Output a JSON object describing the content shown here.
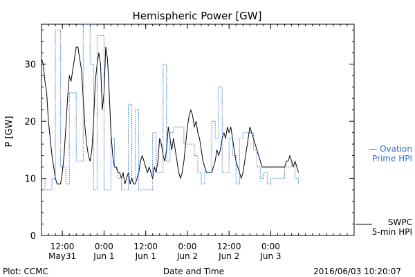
{
  "chart_data": {
    "type": "line",
    "title": "Hemispheric Power [GW]",
    "xlabel": "Date and Time",
    "ylabel": "P [GW]",
    "ylim": [
      0,
      37
    ],
    "yticks": [
      0,
      10,
      20,
      30
    ],
    "xlim": [
      "2016-05-31T06:00",
      "2016-06-04T00:00"
    ],
    "xticks": [
      {
        "t": "2016-05-31T12:00",
        "label_top": "12:00",
        "label_bottom": "May31"
      },
      {
        "t": "2016-06-01T00:00",
        "label_top": "0:00",
        "label_bottom": "Jun 1"
      },
      {
        "t": "2016-06-01T12:00",
        "label_top": "12:00",
        "label_bottom": "Jun 1"
      },
      {
        "t": "2016-06-02T00:00",
        "label_top": "0:00",
        "label_bottom": "Jun 2"
      },
      {
        "t": "2016-06-02T12:00",
        "label_top": "12:00",
        "label_bottom": "Jun 2"
      },
      {
        "t": "2016-06-03T00:00",
        "label_top": "0:00",
        "label_bottom": "Jun 3"
      }
    ],
    "series": [
      {
        "name": "SWPC 5-min HPI",
        "legend_lines": [
          "SWPC",
          "5-min HPI"
        ],
        "color": "#000000",
        "style": "solid",
        "points": [
          [
            "2016-05-31T06:00",
            31
          ],
          [
            "2016-05-31T06:30",
            30
          ],
          [
            "2016-05-31T07:00",
            27
          ],
          [
            "2016-05-31T07:30",
            25
          ],
          [
            "2016-05-31T08:00",
            20
          ],
          [
            "2016-05-31T08:30",
            17
          ],
          [
            "2016-05-31T09:00",
            14
          ],
          [
            "2016-05-31T09:30",
            12
          ],
          [
            "2016-05-31T10:00",
            10
          ],
          [
            "2016-05-31T10:30",
            9
          ],
          [
            "2016-05-31T11:00",
            9
          ],
          [
            "2016-05-31T11:30",
            9
          ],
          [
            "2016-05-31T12:00",
            11
          ],
          [
            "2016-05-31T12:30",
            14
          ],
          [
            "2016-05-31T13:00",
            19
          ],
          [
            "2016-05-31T13:30",
            24
          ],
          [
            "2016-05-31T14:00",
            28
          ],
          [
            "2016-05-31T14:30",
            27
          ],
          [
            "2016-05-31T15:00",
            29
          ],
          [
            "2016-05-31T15:30",
            31
          ],
          [
            "2016-05-31T16:00",
            33
          ],
          [
            "2016-05-31T16:30",
            33
          ],
          [
            "2016-05-31T17:00",
            31
          ],
          [
            "2016-05-31T17:30",
            29
          ],
          [
            "2016-05-31T18:00",
            24
          ],
          [
            "2016-05-31T18:30",
            19
          ],
          [
            "2016-05-31T19:00",
            16
          ],
          [
            "2016-05-31T19:30",
            14
          ],
          [
            "2016-05-31T20:00",
            13
          ],
          [
            "2016-05-31T20:30",
            15
          ],
          [
            "2016-05-31T21:00",
            20
          ],
          [
            "2016-05-31T21:30",
            27
          ],
          [
            "2016-05-31T22:00",
            30
          ],
          [
            "2016-05-31T22:30",
            32
          ],
          [
            "2016-05-31T23:00",
            30
          ],
          [
            "2016-05-31T23:30",
            22
          ],
          [
            "2016-06-01T00:00",
            25
          ],
          [
            "2016-06-01T00:30",
            33
          ],
          [
            "2016-06-01T01:00",
            31
          ],
          [
            "2016-06-01T01:30",
            25
          ],
          [
            "2016-06-01T02:00",
            18
          ],
          [
            "2016-06-01T02:30",
            14
          ],
          [
            "2016-06-01T03:00",
            12
          ],
          [
            "2016-06-01T03:30",
            12
          ],
          [
            "2016-06-01T04:00",
            11
          ],
          [
            "2016-06-01T04:30",
            11
          ],
          [
            "2016-06-01T05:00",
            10
          ],
          [
            "2016-06-01T05:30",
            11
          ],
          [
            "2016-06-01T06:00",
            9
          ],
          [
            "2016-06-01T06:30",
            10
          ],
          [
            "2016-06-01T07:00",
            11
          ],
          [
            "2016-06-01T07:30",
            9
          ],
          [
            "2016-06-01T08:00",
            10
          ],
          [
            "2016-06-01T08:30",
            9
          ],
          [
            "2016-06-01T09:00",
            9
          ],
          [
            "2016-06-01T09:30",
            10
          ],
          [
            "2016-06-01T10:00",
            11
          ],
          [
            "2016-06-01T10:30",
            13
          ],
          [
            "2016-06-01T11:00",
            14
          ],
          [
            "2016-06-01T11:30",
            13
          ],
          [
            "2016-06-01T12:00",
            12
          ],
          [
            "2016-06-01T12:30",
            11
          ],
          [
            "2016-06-01T13:00",
            12
          ],
          [
            "2016-06-01T13:30",
            11
          ],
          [
            "2016-06-01T14:00",
            10
          ],
          [
            "2016-06-01T14:30",
            12
          ],
          [
            "2016-06-01T15:00",
            11
          ],
          [
            "2016-06-01T15:30",
            13
          ],
          [
            "2016-06-01T16:00",
            17
          ],
          [
            "2016-06-01T16:30",
            16
          ],
          [
            "2016-06-01T17:00",
            14
          ],
          [
            "2016-06-01T17:30",
            13
          ],
          [
            "2016-06-01T18:00",
            15
          ],
          [
            "2016-06-01T18:30",
            19
          ],
          [
            "2016-06-01T19:00",
            17
          ],
          [
            "2016-06-01T19:30",
            15
          ],
          [
            "2016-06-01T20:00",
            17
          ],
          [
            "2016-06-01T20:30",
            15
          ],
          [
            "2016-06-01T21:00",
            13
          ],
          [
            "2016-06-01T21:30",
            11
          ],
          [
            "2016-06-01T22:00",
            10
          ],
          [
            "2016-06-01T22:30",
            11
          ],
          [
            "2016-06-01T23:00",
            13
          ],
          [
            "2016-06-01T23:30",
            16
          ],
          [
            "2016-06-02T00:00",
            19
          ],
          [
            "2016-06-02T00:30",
            21
          ],
          [
            "2016-06-02T01:00",
            22
          ],
          [
            "2016-06-02T01:30",
            21
          ],
          [
            "2016-06-02T02:00",
            19
          ],
          [
            "2016-06-02T02:30",
            20
          ],
          [
            "2016-06-02T03:00",
            18
          ],
          [
            "2016-06-02T03:30",
            17
          ],
          [
            "2016-06-02T04:00",
            15
          ],
          [
            "2016-06-02T04:30",
            13
          ],
          [
            "2016-06-02T05:00",
            12
          ],
          [
            "2016-06-02T05:30",
            11
          ],
          [
            "2016-06-02T06:00",
            11
          ],
          [
            "2016-06-02T07:00",
            11
          ],
          [
            "2016-06-02T07:30",
            12
          ],
          [
            "2016-06-02T08:00",
            13
          ],
          [
            "2016-06-02T08:30",
            15
          ],
          [
            "2016-06-02T09:00",
            14
          ],
          [
            "2016-06-02T09:30",
            15
          ],
          [
            "2016-06-02T10:00",
            17
          ],
          [
            "2016-06-02T10:30",
            18
          ],
          [
            "2016-06-02T11:00",
            17
          ],
          [
            "2016-06-02T11:30",
            19
          ],
          [
            "2016-06-02T12:00",
            18
          ],
          [
            "2016-06-02T12:30",
            19
          ],
          [
            "2016-06-02T13:00",
            17
          ],
          [
            "2016-06-02T13:30",
            15
          ],
          [
            "2016-06-02T14:00",
            13
          ],
          [
            "2016-06-02T14:30",
            12
          ],
          [
            "2016-06-02T15:00",
            11
          ],
          [
            "2016-06-02T15:30",
            10
          ],
          [
            "2016-06-02T16:00",
            11
          ],
          [
            "2016-06-02T16:30",
            13
          ],
          [
            "2016-06-02T17:00",
            15
          ],
          [
            "2016-06-02T17:30",
            17
          ],
          [
            "2016-06-02T18:00",
            19
          ],
          [
            "2016-06-02T18:30",
            18
          ],
          [
            "2016-06-02T19:00",
            17
          ],
          [
            "2016-06-02T19:30",
            16
          ],
          [
            "2016-06-02T20:00",
            15
          ],
          [
            "2016-06-02T20:30",
            14
          ],
          [
            "2016-06-02T21:00",
            13
          ],
          [
            "2016-06-02T21:30",
            12
          ],
          [
            "2016-06-02T23:30",
            12
          ],
          [
            "2016-06-03T00:00",
            12
          ],
          [
            "2016-06-03T04:00",
            12
          ],
          [
            "2016-06-03T04:30",
            13
          ],
          [
            "2016-06-03T05:00",
            13
          ],
          [
            "2016-06-03T05:30",
            14
          ],
          [
            "2016-06-03T06:00",
            13
          ],
          [
            "2016-06-03T06:30",
            12
          ],
          [
            "2016-06-03T07:00",
            13
          ],
          [
            "2016-06-03T07:30",
            12
          ],
          [
            "2016-06-03T08:00",
            11
          ]
        ]
      },
      {
        "name": "Ovation Prime HPI",
        "legend_lines": [
          "— Ovation",
          "Prime HPI"
        ],
        "color": "#2f6fd6",
        "style": "dotted",
        "points": [
          [
            "2016-05-31T06:00",
            10
          ],
          [
            "2016-05-31T07:00",
            10
          ],
          [
            "2016-05-31T07:00",
            8
          ],
          [
            "2016-05-31T09:00",
            8
          ],
          [
            "2016-05-31T09:00",
            10
          ],
          [
            "2016-05-31T10:00",
            10
          ],
          [
            "2016-05-31T10:00",
            36
          ],
          [
            "2016-05-31T11:30",
            36
          ],
          [
            "2016-05-31T11:30",
            12
          ],
          [
            "2016-05-31T13:00",
            12
          ],
          [
            "2016-05-31T13:00",
            9
          ],
          [
            "2016-05-31T14:00",
            9
          ],
          [
            "2016-05-31T14:00",
            25
          ],
          [
            "2016-05-31T16:00",
            25
          ],
          [
            "2016-05-31T16:00",
            13
          ],
          [
            "2016-05-31T18:00",
            13
          ],
          [
            "2016-05-31T18:00",
            37
          ],
          [
            "2016-05-31T20:00",
            37
          ],
          [
            "2016-05-31T20:00",
            30
          ],
          [
            "2016-05-31T21:00",
            30
          ],
          [
            "2016-05-31T21:00",
            8
          ],
          [
            "2016-05-31T22:00",
            8
          ],
          [
            "2016-05-31T22:00",
            35
          ],
          [
            "2016-06-01T00:00",
            35
          ],
          [
            "2016-06-01T00:00",
            8
          ],
          [
            "2016-06-01T02:00",
            8
          ],
          [
            "2016-06-01T02:00",
            17
          ],
          [
            "2016-06-01T03:00",
            17
          ],
          [
            "2016-06-01T03:00",
            12
          ],
          [
            "2016-06-01T04:00",
            12
          ],
          [
            "2016-06-01T04:00",
            10
          ],
          [
            "2016-06-01T05:00",
            10
          ],
          [
            "2016-06-01T05:00",
            8
          ],
          [
            "2016-06-01T07:00",
            8
          ],
          [
            "2016-06-01T07:00",
            23
          ],
          [
            "2016-06-01T08:00",
            23
          ],
          [
            "2016-06-01T08:00",
            10
          ],
          [
            "2016-06-01T09:00",
            10
          ],
          [
            "2016-06-01T09:00",
            22
          ],
          [
            "2016-06-01T10:00",
            22
          ],
          [
            "2016-06-01T10:00",
            8
          ],
          [
            "2016-06-01T14:00",
            8
          ],
          [
            "2016-06-01T14:00",
            18
          ],
          [
            "2016-06-01T15:00",
            18
          ],
          [
            "2016-06-01T15:00",
            11
          ],
          [
            "2016-06-01T17:00",
            11
          ],
          [
            "2016-06-01T17:00",
            30
          ],
          [
            "2016-06-01T18:00",
            30
          ],
          [
            "2016-06-01T18:00",
            13
          ],
          [
            "2016-06-01T19:00",
            13
          ],
          [
            "2016-06-01T19:00",
            18
          ],
          [
            "2016-06-01T20:00",
            18
          ],
          [
            "2016-06-01T20:00",
            19
          ],
          [
            "2016-06-01T23:00",
            19
          ],
          [
            "2016-06-01T23:00",
            16
          ],
          [
            "2016-06-02T02:00",
            16
          ],
          [
            "2016-06-02T02:00",
            14
          ],
          [
            "2016-06-02T03:00",
            14
          ],
          [
            "2016-06-02T03:00",
            11
          ],
          [
            "2016-06-02T04:00",
            11
          ],
          [
            "2016-06-02T04:00",
            9
          ],
          [
            "2016-06-02T05:00",
            9
          ],
          [
            "2016-06-02T05:00",
            11
          ],
          [
            "2016-06-02T07:00",
            11
          ],
          [
            "2016-06-02T07:00",
            20
          ],
          [
            "2016-06-02T08:00",
            20
          ],
          [
            "2016-06-02T08:00",
            17
          ],
          [
            "2016-06-02T09:00",
            17
          ],
          [
            "2016-06-02T09:00",
            26
          ],
          [
            "2016-06-02T10:00",
            26
          ],
          [
            "2016-06-02T10:00",
            11
          ],
          [
            "2016-06-02T12:00",
            11
          ],
          [
            "2016-06-02T12:00",
            17
          ],
          [
            "2016-06-02T13:00",
            17
          ],
          [
            "2016-06-02T13:00",
            14
          ],
          [
            "2016-06-02T14:00",
            14
          ],
          [
            "2016-06-02T14:00",
            9
          ],
          [
            "2016-06-02T15:00",
            9
          ],
          [
            "2016-06-02T15:00",
            17
          ],
          [
            "2016-06-02T16:00",
            17
          ],
          [
            "2016-06-02T16:00",
            18
          ],
          [
            "2016-06-02T19:00",
            18
          ],
          [
            "2016-06-02T19:00",
            15
          ],
          [
            "2016-06-02T20:00",
            15
          ],
          [
            "2016-06-02T20:00",
            12
          ],
          [
            "2016-06-02T21:00",
            12
          ],
          [
            "2016-06-02T21:00",
            10
          ],
          [
            "2016-06-02T22:00",
            10
          ],
          [
            "2016-06-02T22:00",
            11
          ],
          [
            "2016-06-02T23:00",
            11
          ],
          [
            "2016-06-02T23:00",
            9
          ],
          [
            "2016-06-03T00:00",
            9
          ],
          [
            "2016-06-03T00:00",
            10
          ],
          [
            "2016-06-03T04:00",
            10
          ],
          [
            "2016-06-03T04:00",
            12
          ],
          [
            "2016-06-03T06:00",
            12
          ],
          [
            "2016-06-03T06:00",
            13
          ],
          [
            "2016-06-03T07:00",
            13
          ],
          [
            "2016-06-03T07:00",
            10
          ],
          [
            "2016-06-03T08:00",
            10
          ],
          [
            "2016-06-03T08:00",
            9
          ]
        ]
      }
    ],
    "legend_placement": "right, outside plot"
  },
  "footer": {
    "left": "Plot: CCMC",
    "center": "Date and Time",
    "right": "2016/06/03 10:20:07"
  }
}
